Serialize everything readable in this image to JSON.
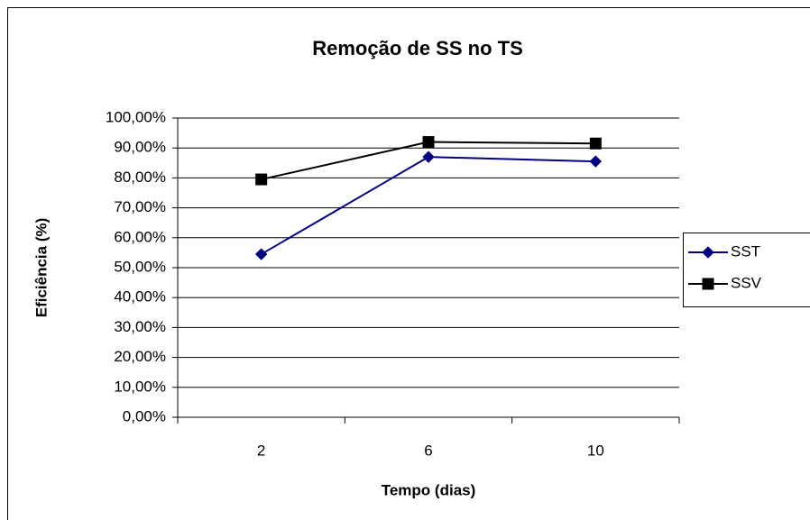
{
  "chart_data": {
    "type": "line",
    "title": "Remoção de SS no TS",
    "x_label": "Tempo (dias)",
    "y_label": "Eficiência (%)",
    "categories": [
      "2",
      "6",
      "10"
    ],
    "series": [
      {
        "name": "SST",
        "color": "#000080",
        "marker": "diamond",
        "values": [
          54.5,
          87,
          85.5
        ]
      },
      {
        "name": "SSV",
        "color": "#000000",
        "marker": "square",
        "values": [
          79.5,
          92,
          91.5
        ]
      }
    ],
    "ylim": [
      0,
      100
    ],
    "yticks": [
      {
        "value": 0,
        "label": "0,00%"
      },
      {
        "value": 10,
        "label": "10,00%"
      },
      {
        "value": 20,
        "label": "20,00%"
      },
      {
        "value": 30,
        "label": "30,00%"
      },
      {
        "value": 40,
        "label": "40,00%"
      },
      {
        "value": 50,
        "label": "50,00%"
      },
      {
        "value": 60,
        "label": "60,00%"
      },
      {
        "value": 70,
        "label": "70,00%"
      },
      {
        "value": 80,
        "label": "80,00%"
      },
      {
        "value": 90,
        "label": "90,00%"
      },
      {
        "value": 100,
        "label": "100,00%"
      }
    ],
    "grid": true,
    "legend": "right"
  }
}
